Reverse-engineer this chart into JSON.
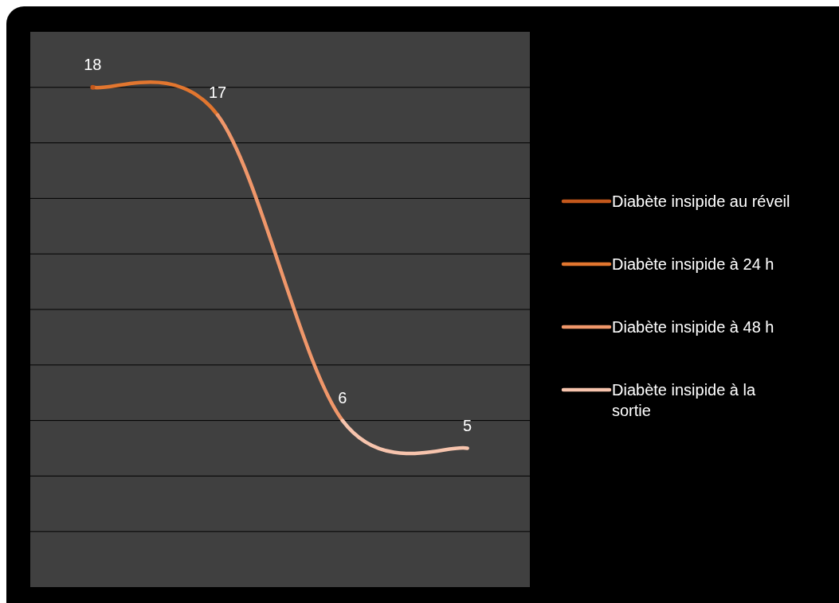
{
  "chart_data": {
    "type": "line",
    "categories": [
      null,
      null,
      null,
      null
    ],
    "series": [
      {
        "name": "Diabète insipide au réveil",
        "color": "#c4581c",
        "marker": "circle",
        "values": [
          18,
          null,
          null,
          null
        ],
        "value_labels": [
          "18",
          null,
          null,
          null
        ]
      },
      {
        "name": "Diabète insipide à 24 h",
        "color": "#e2762f",
        "values": [
          18,
          17,
          null,
          null
        ],
        "value_labels": [
          null,
          "17",
          null,
          null
        ]
      },
      {
        "name": "Diabète insipide à 48 h",
        "color": "#f0976a",
        "values": [
          null,
          17,
          6,
          null
        ],
        "value_labels": [
          null,
          null,
          "6",
          null
        ]
      },
      {
        "name": "Diabète insipide à la sortie",
        "color": "#f7c4ad",
        "values": [
          null,
          null,
          6,
          5
        ],
        "value_labels": [
          null,
          null,
          null,
          "5"
        ]
      }
    ],
    "ylim": [
      0,
      20
    ],
    "yticks": [
      {
        "value": 0,
        "label": null
      },
      {
        "value": 2,
        "label": null
      },
      {
        "value": 4,
        "label": null
      },
      {
        "value": 6,
        "label": null
      },
      {
        "value": 8,
        "label": null
      },
      {
        "value": 10,
        "label": null
      },
      {
        "value": 12,
        "label": null
      },
      {
        "value": 14,
        "label": null
      },
      {
        "value": 16,
        "label": null
      },
      {
        "value": 18,
        "label": null
      },
      {
        "value": 20,
        "label": null
      }
    ],
    "grid": "y",
    "legend": "right",
    "line_style": "solid"
  }
}
